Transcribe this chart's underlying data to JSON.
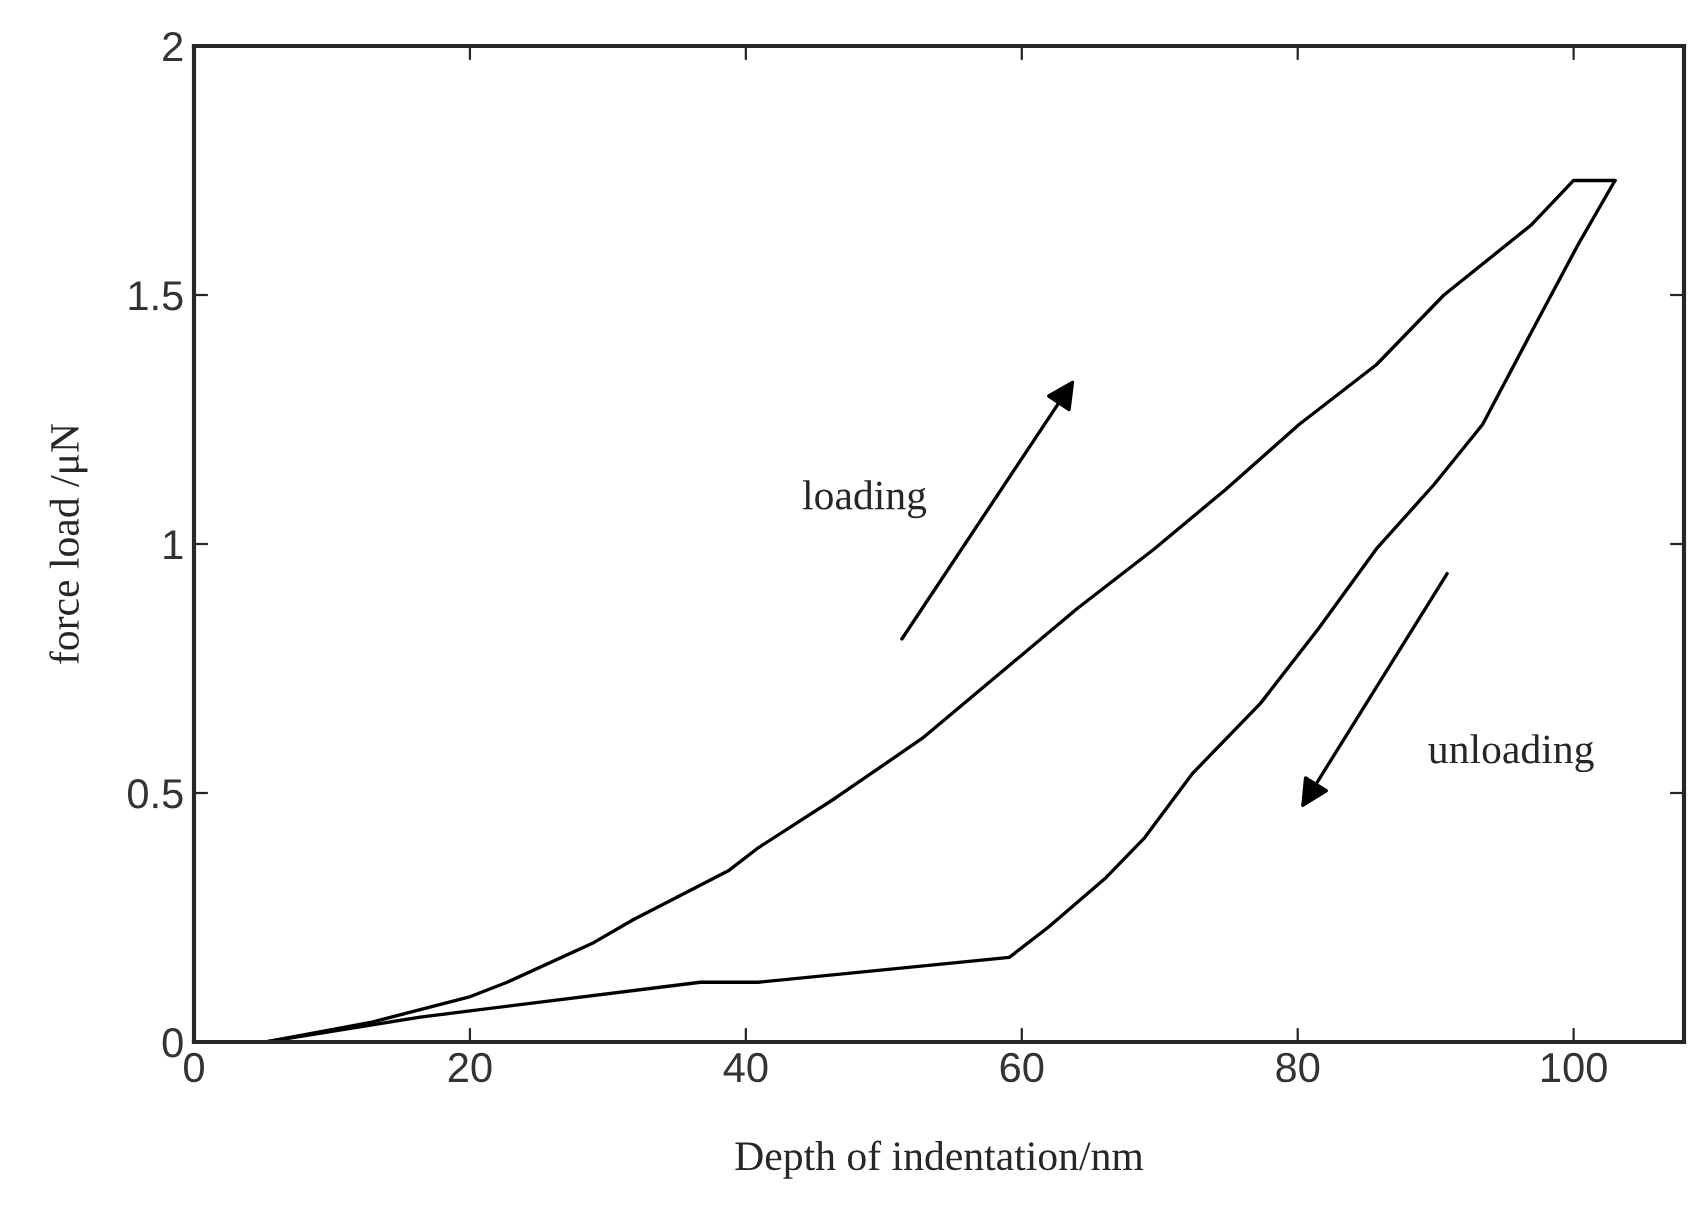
{
  "chart_data": {
    "type": "line",
    "xlabel": "Depth of indentation/nm",
    "ylabel": "force load /μN",
    "xlim": [
      0,
      108
    ],
    "xticks": [
      0,
      20,
      40,
      60,
      80,
      100
    ],
    "ylim": [
      0,
      2
    ],
    "yticks": [
      0,
      0.5,
      1,
      1.5,
      2
    ],
    "grid": false,
    "legend": false,
    "marker": "none",
    "line_style": "solid",
    "series": [
      {
        "color": "#000000",
        "x": [
          0,
          5.2,
          12.9,
          19.9,
          22.7,
          29,
          31.8,
          38.8,
          40.9,
          46.5,
          52.8,
          58.4,
          64,
          69.6,
          74.8,
          80.1,
          85.7,
          90.6,
          96.9,
          100,
          103
        ],
        "values": [
          0,
          0,
          0.04,
          0.09,
          0.12,
          0.2,
          0.245,
          0.345,
          0.39,
          0.49,
          0.61,
          0.74,
          0.87,
          0.99,
          1.11,
          1.24,
          1.36,
          1.5,
          1.64,
          1.73,
          1.73
        ]
      },
      {
        "color": "#000000",
        "x": [
          103,
          100.3,
          97.6,
          93.4,
          89.9,
          85.7,
          81.5,
          77.3,
          72.4,
          68.9,
          66.1,
          61.9,
          59.1,
          40.9,
          36.7,
          16.4,
          5.2
        ],
        "values": [
          1.73,
          1.6,
          1.46,
          1.24,
          1.12,
          0.99,
          0.83,
          0.68,
          0.54,
          0.41,
          0.33,
          0.23,
          0.17,
          0.12,
          0.12,
          0.05,
          0
        ]
      }
    ],
    "annotations": [
      "loading",
      "unloading"
    ]
  }
}
